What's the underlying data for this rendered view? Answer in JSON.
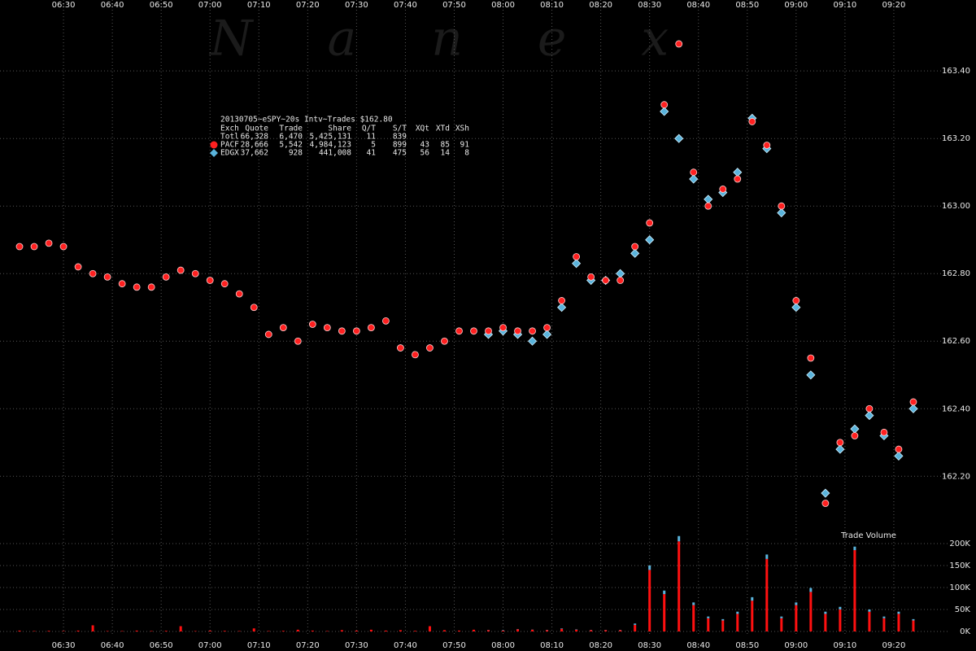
{
  "chart_data": [
    {
      "type": "scatter",
      "watermark": "Nanex",
      "stats": {
        "title": "20130705~eSPY~20s Intv~Trades $162.80",
        "columns": [
          "Exch",
          "Quote",
          "Trade",
          "Share",
          "Q/T",
          "S/T",
          "XQt",
          "XTd",
          "XSh"
        ],
        "total_label": "Totl",
        "total": [
          "66,328",
          "6,470",
          "5,425,131",
          "11",
          "839"
        ],
        "rows": [
          [
            "28,666",
            "5,542",
            "4,984,123",
            "5",
            "899",
            "43",
            "85",
            "91"
          ],
          [
            "37,662",
            "928",
            "441,008",
            "41",
            "475",
            "56",
            "14",
            "8"
          ]
        ]
      },
      "x": [
        "06:21",
        "06:24",
        "06:27",
        "06:30",
        "06:33",
        "06:36",
        "06:39",
        "06:42",
        "06:45",
        "06:48",
        "06:51",
        "06:54",
        "06:57",
        "07:00",
        "07:03",
        "07:06",
        "07:09",
        "07:12",
        "07:15",
        "07:18",
        "07:21",
        "07:24",
        "07:27",
        "07:30",
        "07:33",
        "07:36",
        "07:39",
        "07:42",
        "07:45",
        "07:48",
        "07:51",
        "07:54",
        "07:57",
        "08:00",
        "08:03",
        "08:06",
        "08:09",
        "08:12",
        "08:15",
        "08:18",
        "08:21",
        "08:24",
        "08:27",
        "08:30",
        "08:33",
        "08:36",
        "08:39",
        "08:42",
        "08:45",
        "08:48",
        "08:51",
        "08:54",
        "08:57",
        "09:00",
        "09:03",
        "09:06",
        "09:09",
        "09:12",
        "09:15",
        "09:18",
        "09:21",
        "09:24"
      ],
      "xlim": [
        "06:17",
        "09:31"
      ],
      "xticks": [
        "06:30",
        "06:40",
        "06:50",
        "07:00",
        "07:10",
        "07:20",
        "07:30",
        "07:40",
        "07:50",
        "08:00",
        "08:10",
        "08:20",
        "08:30",
        "08:40",
        "08:50",
        "09:00",
        "09:10",
        "09:20"
      ],
      "series": [
        {
          "name": "PACF",
          "color": "#ff2020",
          "marker": "circle",
          "values": [
            162.88,
            162.88,
            162.89,
            162.88,
            162.82,
            162.8,
            162.79,
            162.77,
            162.76,
            162.76,
            162.79,
            162.81,
            162.8,
            162.78,
            162.77,
            162.74,
            162.7,
            162.62,
            162.64,
            162.6,
            162.65,
            162.64,
            162.63,
            162.63,
            162.64,
            162.66,
            162.58,
            162.56,
            162.58,
            162.6,
            162.63,
            162.63,
            162.63,
            162.64,
            162.63,
            162.63,
            162.64,
            162.72,
            162.85,
            162.79,
            162.78,
            162.78,
            162.88,
            162.95,
            163.3,
            163.48,
            163.1,
            163.0,
            163.05,
            163.08,
            163.25,
            163.18,
            163.0,
            162.72,
            162.55,
            162.12,
            162.3,
            162.32,
            162.4,
            162.33,
            162.28,
            162.42
          ]
        },
        {
          "name": "EDGX",
          "color": "#5ab4dc",
          "marker": "diamond",
          "values": [
            null,
            null,
            null,
            null,
            null,
            null,
            null,
            null,
            null,
            null,
            null,
            null,
            null,
            null,
            null,
            null,
            null,
            null,
            null,
            null,
            null,
            null,
            null,
            null,
            null,
            null,
            null,
            null,
            null,
            null,
            null,
            null,
            162.62,
            162.63,
            162.62,
            162.6,
            162.62,
            162.7,
            162.83,
            162.78,
            162.78,
            162.8,
            162.86,
            162.9,
            163.28,
            163.2,
            163.08,
            163.02,
            163.04,
            163.1,
            163.26,
            163.17,
            162.98,
            162.7,
            162.5,
            162.15,
            162.28,
            162.34,
            162.38,
            162.32,
            162.26,
            162.4
          ]
        }
      ],
      "ylim": [
        162.02,
        163.61
      ],
      "yticks": [
        {
          "value": 162.2,
          "label": "162.20"
        },
        {
          "value": 162.4,
          "label": "162.40"
        },
        {
          "value": 162.6,
          "label": "162.60"
        },
        {
          "value": 162.8,
          "label": "162.80"
        },
        {
          "value": 163,
          "label": "163.00"
        },
        {
          "value": 163.2,
          "label": "163.20"
        },
        {
          "value": 163.4,
          "label": "163.40"
        }
      ],
      "grid": true
    },
    {
      "type": "bar",
      "stacked": true,
      "title": "Trade Volume",
      "x": [
        "06:21",
        "06:24",
        "06:27",
        "06:30",
        "06:33",
        "06:36",
        "06:39",
        "06:42",
        "06:45",
        "06:48",
        "06:51",
        "06:54",
        "06:57",
        "07:00",
        "07:03",
        "07:06",
        "07:09",
        "07:12",
        "07:15",
        "07:18",
        "07:21",
        "07:24",
        "07:27",
        "07:30",
        "07:33",
        "07:36",
        "07:39",
        "07:42",
        "07:45",
        "07:48",
        "07:51",
        "07:54",
        "07:57",
        "08:00",
        "08:03",
        "08:06",
        "08:09",
        "08:12",
        "08:15",
        "08:18",
        "08:21",
        "08:24",
        "08:27",
        "08:30",
        "08:33",
        "08:36",
        "08:39",
        "08:42",
        "08:45",
        "08:48",
        "08:51",
        "08:54",
        "08:57",
        "09:00",
        "09:03",
        "09:06",
        "09:09",
        "09:12",
        "09:15",
        "09:18",
        "09:21",
        "09:24"
      ],
      "xlim": [
        "06:17",
        "09:31"
      ],
      "xticks": [
        "06:30",
        "06:40",
        "06:50",
        "07:00",
        "07:10",
        "07:20",
        "07:30",
        "07:40",
        "07:50",
        "08:00",
        "08:10",
        "08:20",
        "08:30",
        "08:40",
        "08:50",
        "09:00",
        "09:10",
        "09:20"
      ],
      "series": [
        {
          "name": "PACF",
          "color": "#ff1010",
          "values": [
            2000,
            1000,
            1500,
            1000,
            2000,
            14000,
            1000,
            1000,
            2000,
            1000,
            1500,
            12000,
            1000,
            2000,
            1500,
            1000,
            7000,
            1000,
            1500,
            4000,
            2000,
            1000,
            3000,
            2000,
            4000,
            2000,
            3000,
            1500,
            12000,
            3000,
            2000,
            4000,
            3000,
            2000,
            5000,
            4000,
            3000,
            6000,
            4000,
            3000,
            3000,
            3000,
            15000,
            140000,
            85000,
            205000,
            60000,
            30000,
            25000,
            40000,
            70000,
            165000,
            30000,
            60000,
            90000,
            40000,
            50000,
            185000,
            45000,
            30000,
            40000,
            25000
          ]
        },
        {
          "name": "EDGX",
          "color": "#5ab4dc",
          "values": [
            null,
            null,
            null,
            null,
            null,
            null,
            null,
            null,
            null,
            null,
            null,
            null,
            null,
            null,
            null,
            null,
            null,
            null,
            null,
            null,
            null,
            null,
            null,
            null,
            null,
            null,
            null,
            null,
            null,
            null,
            null,
            null,
            500,
            800,
            500,
            400,
            600,
            1000,
            800,
            500,
            500,
            600,
            3000,
            10000,
            8000,
            12000,
            6000,
            4000,
            3000,
            5000,
            8000,
            10000,
            4000,
            6000,
            9000,
            5000,
            6000,
            8000,
            5000,
            4000,
            5000,
            3000
          ]
        }
      ],
      "ylim": [
        -7400,
        211000
      ],
      "yticks": [
        {
          "value": 0,
          "label": "0K"
        },
        {
          "value": 50000,
          "label": "50K"
        },
        {
          "value": 100000,
          "label": "100K"
        },
        {
          "value": 150000,
          "label": "150K"
        },
        {
          "value": 200000,
          "label": "200K"
        }
      ],
      "grid": true
    }
  ]
}
